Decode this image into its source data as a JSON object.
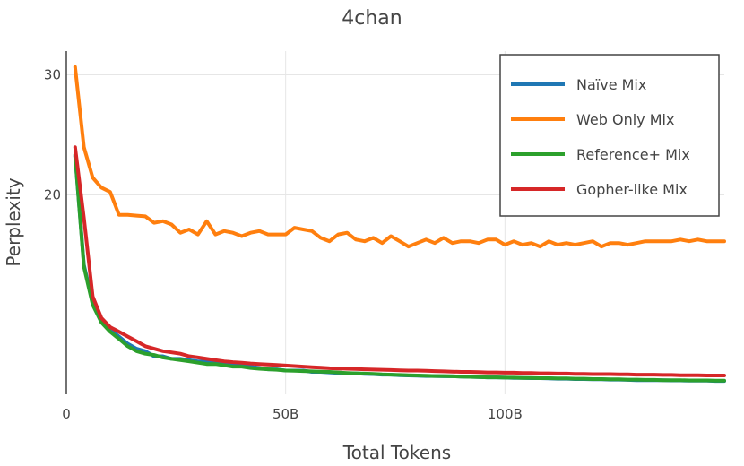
{
  "chart_data": {
    "type": "line",
    "title": "4chan",
    "xlabel": "Total Tokens",
    "ylabel": "Perplexity",
    "x_scale": "linear",
    "y_scale": "log",
    "xlim": [
      0,
      150
    ],
    "ylim": [
      10.2,
      32.5
    ],
    "x_ticks": [
      {
        "value": 0,
        "label": "0"
      },
      {
        "value": 50,
        "label": "50B"
      },
      {
        "value": 100,
        "label": "100B"
      }
    ],
    "y_ticks": [
      {
        "value": 20,
        "label": "20"
      },
      {
        "value": 30,
        "label": "30"
      }
    ],
    "grid": true,
    "legend_position": "top-right",
    "x": [
      2,
      4,
      6,
      8,
      10,
      12,
      14,
      16,
      18,
      20,
      22,
      24,
      26,
      28,
      30,
      32,
      34,
      36,
      38,
      40,
      42,
      44,
      46,
      48,
      50,
      52,
      54,
      56,
      58,
      60,
      62,
      64,
      66,
      68,
      70,
      72,
      74,
      76,
      78,
      80,
      82,
      84,
      86,
      88,
      90,
      92,
      94,
      96,
      98,
      100,
      102,
      104,
      106,
      108,
      110,
      112,
      114,
      116,
      118,
      120,
      122,
      124,
      126,
      128,
      130,
      132,
      134,
      136,
      138,
      140,
      142,
      144,
      146,
      148,
      150
    ],
    "series": [
      {
        "name": "Naïve Mix",
        "color": "#1f77b4",
        "values": [
          22.8,
          15.8,
          13.9,
          13.1,
          12.7,
          12.4,
          12.1,
          11.9,
          11.8,
          11.6,
          11.6,
          11.5,
          11.5,
          11.45,
          11.4,
          11.4,
          11.35,
          11.3,
          11.3,
          11.25,
          11.2,
          11.15,
          11.1,
          11.1,
          11.05,
          11.05,
          11.05,
          11.0,
          11.0,
          10.98,
          10.96,
          10.95,
          10.95,
          10.93,
          10.92,
          10.9,
          10.9,
          10.88,
          10.87,
          10.86,
          10.85,
          10.85,
          10.84,
          10.84,
          10.83,
          10.82,
          10.81,
          10.8,
          10.8,
          10.79,
          10.78,
          10.78,
          10.77,
          10.77,
          10.76,
          10.75,
          10.75,
          10.74,
          10.74,
          10.73,
          10.73,
          10.72,
          10.72,
          10.71,
          10.7,
          10.7,
          10.7,
          10.7,
          10.69,
          10.69,
          10.68,
          10.68,
          10.68,
          10.67,
          10.67
        ]
      },
      {
        "name": "Web Only Mix",
        "color": "#ff7f0e",
        "values": [
          30.8,
          23.5,
          21.2,
          20.5,
          20.2,
          18.7,
          18.7,
          18.65,
          18.6,
          18.2,
          18.3,
          18.1,
          17.6,
          17.8,
          17.5,
          18.3,
          17.5,
          17.7,
          17.6,
          17.4,
          17.6,
          17.7,
          17.5,
          17.5,
          17.5,
          17.9,
          17.8,
          17.7,
          17.3,
          17.1,
          17.5,
          17.6,
          17.2,
          17.1,
          17.3,
          17.0,
          17.4,
          17.1,
          16.8,
          17.0,
          17.2,
          17.0,
          17.3,
          17.0,
          17.1,
          17.1,
          17.0,
          17.2,
          17.2,
          16.9,
          17.1,
          16.9,
          17.0,
          16.8,
          17.1,
          16.9,
          17.0,
          16.9,
          17.0,
          17.1,
          16.8,
          17.0,
          17.0,
          16.9,
          17.0,
          17.1,
          17.1,
          17.1,
          17.1,
          17.2,
          17.1,
          17.2,
          17.1,
          17.1,
          17.1
        ]
      },
      {
        "name": "Reference+ Mix",
        "color": "#2ca02c",
        "values": [
          22.9,
          15.7,
          13.8,
          13.0,
          12.6,
          12.3,
          12.0,
          11.8,
          11.7,
          11.65,
          11.55,
          11.5,
          11.45,
          11.4,
          11.35,
          11.3,
          11.3,
          11.25,
          11.2,
          11.2,
          11.15,
          11.12,
          11.1,
          11.08,
          11.05,
          11.04,
          11.03,
          11.02,
          11.01,
          11.0,
          10.98,
          10.96,
          10.95,
          10.94,
          10.93,
          10.91,
          10.9,
          10.89,
          10.88,
          10.87,
          10.86,
          10.85,
          10.85,
          10.84,
          10.83,
          10.82,
          10.81,
          10.8,
          10.8,
          10.79,
          10.79,
          10.78,
          10.78,
          10.77,
          10.77,
          10.76,
          10.76,
          10.75,
          10.75,
          10.74,
          10.74,
          10.73,
          10.73,
          10.72,
          10.72,
          10.71,
          10.71,
          10.7,
          10.7,
          10.7,
          10.69,
          10.69,
          10.69,
          10.68,
          10.68
        ]
      },
      {
        "name": "Gopher-like Mix",
        "color": "#d62728",
        "values": [
          23.5,
          18.5,
          14.2,
          13.2,
          12.8,
          12.6,
          12.4,
          12.2,
          12.0,
          11.9,
          11.8,
          11.75,
          11.7,
          11.6,
          11.55,
          11.5,
          11.45,
          11.4,
          11.37,
          11.35,
          11.32,
          11.3,
          11.28,
          11.26,
          11.24,
          11.22,
          11.2,
          11.18,
          11.16,
          11.14,
          11.13,
          11.12,
          11.11,
          11.1,
          11.09,
          11.08,
          11.07,
          11.06,
          11.05,
          11.05,
          11.04,
          11.03,
          11.02,
          11.01,
          11.0,
          11.0,
          10.99,
          10.98,
          10.98,
          10.97,
          10.97,
          10.96,
          10.96,
          10.95,
          10.95,
          10.94,
          10.94,
          10.93,
          10.93,
          10.92,
          10.92,
          10.92,
          10.91,
          10.91,
          10.9,
          10.9,
          10.9,
          10.89,
          10.89,
          10.88,
          10.88,
          10.88,
          10.87,
          10.87,
          10.87
        ]
      }
    ]
  }
}
